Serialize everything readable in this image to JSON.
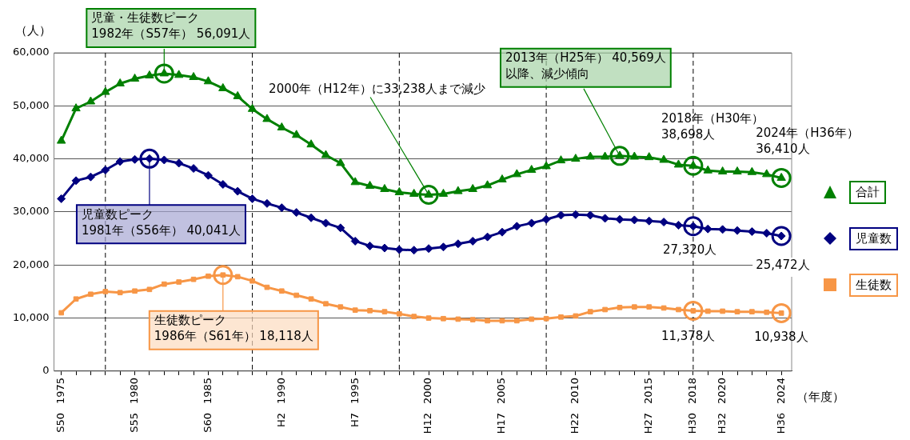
{
  "chart_data": {
    "type": "line",
    "x": [
      1975,
      1976,
      1977,
      1978,
      1979,
      1980,
      1981,
      1982,
      1983,
      1984,
      1985,
      1986,
      1987,
      1988,
      1989,
      1990,
      1991,
      1992,
      1993,
      1994,
      1995,
      1996,
      1997,
      1998,
      1999,
      2000,
      2001,
      2002,
      2003,
      2004,
      2005,
      2006,
      2007,
      2008,
      2009,
      2010,
      2011,
      2012,
      2013,
      2014,
      2015,
      2016,
      2017,
      2018,
      2019,
      2020,
      2021,
      2022,
      2023,
      2024
    ],
    "series": [
      {
        "name": "合計",
        "color": "#008000",
        "marker": "triangle",
        "values": [
          43400,
          49500,
          50800,
          52600,
          54200,
          55100,
          55700,
          56091,
          55800,
          55400,
          54600,
          53300,
          51800,
          49400,
          47500,
          45900,
          44500,
          42700,
          40700,
          39200,
          35600,
          34900,
          34300,
          33700,
          33400,
          33238,
          33400,
          33900,
          34300,
          35000,
          36100,
          37100,
          37900,
          38600,
          39700,
          40000,
          40400,
          40400,
          40569,
          40400,
          40300,
          39800,
          38900,
          38698,
          37800,
          37600,
          37600,
          37500,
          37100,
          36410
        ]
      },
      {
        "name": "児童数",
        "color": "#000080",
        "marker": "diamond",
        "values": [
          32500,
          35900,
          36600,
          37900,
          39500,
          39900,
          40041,
          39800,
          39200,
          38200,
          36900,
          35200,
          33900,
          32500,
          31600,
          30800,
          29900,
          28900,
          27900,
          27000,
          24500,
          23600,
          23200,
          22900,
          22800,
          23100,
          23400,
          24000,
          24500,
          25300,
          26200,
          27300,
          27900,
          28600,
          29400,
          29500,
          29400,
          28800,
          28600,
          28500,
          28300,
          28100,
          27500,
          27320,
          26800,
          26700,
          26500,
          26300,
          26000,
          25472
        ]
      },
      {
        "name": "生徒数",
        "color": "#f79646",
        "marker": "square",
        "values": [
          11000,
          13600,
          14500,
          15000,
          14800,
          15100,
          15400,
          16400,
          16800,
          17300,
          17900,
          18118,
          17800,
          17000,
          15800,
          15100,
          14300,
          13600,
          12700,
          12100,
          11500,
          11400,
          11200,
          10800,
          10300,
          10000,
          9900,
          9800,
          9700,
          9500,
          9500,
          9500,
          9800,
          9900,
          10200,
          10400,
          11200,
          11600,
          12000,
          12100,
          12100,
          11900,
          11600,
          11378,
          11300,
          11300,
          11200,
          11200,
          11100,
          10938
        ]
      }
    ],
    "xlim": [
      1974.5,
      2024.7
    ],
    "xticks": [
      {
        "value": 1975,
        "label": "1975"
      },
      {
        "value": 1976,
        "label": null
      },
      {
        "value": 1977,
        "label": null
      },
      {
        "value": 1978,
        "label": null
      },
      {
        "value": 1979,
        "label": null
      },
      {
        "value": 1980,
        "label": "1980"
      },
      {
        "value": 1981,
        "label": null
      },
      {
        "value": 1982,
        "label": null
      },
      {
        "value": 1983,
        "label": null
      },
      {
        "value": 1984,
        "label": null
      },
      {
        "value": 1985,
        "label": "1985"
      },
      {
        "value": 1986,
        "label": null
      },
      {
        "value": 1987,
        "label": null
      },
      {
        "value": 1988,
        "label": null
      },
      {
        "value": 1989,
        "label": null
      },
      {
        "value": 1990,
        "label": "1990"
      },
      {
        "value": 1991,
        "label": null
      },
      {
        "value": 1992,
        "label": null
      },
      {
        "value": 1993,
        "label": null
      },
      {
        "value": 1994,
        "label": null
      },
      {
        "value": 1995,
        "label": "1995"
      },
      {
        "value": 1996,
        "label": null
      },
      {
        "value": 1997,
        "label": null
      },
      {
        "value": 1998,
        "label": null
      },
      {
        "value": 1999,
        "label": null
      },
      {
        "value": 2000,
        "label": "2000"
      },
      {
        "value": 2001,
        "label": null
      },
      {
        "value": 2002,
        "label": null
      },
      {
        "value": 2003,
        "label": null
      },
      {
        "value": 2004,
        "label": null
      },
      {
        "value": 2005,
        "label": "2005"
      },
      {
        "value": 2006,
        "label": null
      },
      {
        "value": 2007,
        "label": null
      },
      {
        "value": 2008,
        "label": null
      },
      {
        "value": 2009,
        "label": null
      },
      {
        "value": 2010,
        "label": "2010"
      },
      {
        "value": 2011,
        "label": null
      },
      {
        "value": 2012,
        "label": null
      },
      {
        "value": 2013,
        "label": null
      },
      {
        "value": 2014,
        "label": null
      },
      {
        "value": 2015,
        "label": "2015"
      },
      {
        "value": 2016,
        "label": null
      },
      {
        "value": 2017,
        "label": null
      },
      {
        "value": 2018,
        "label": "2018"
      },
      {
        "value": 2019,
        "label": null
      },
      {
        "value": 2020,
        "label": "2020"
      },
      {
        "value": 2021,
        "label": null
      },
      {
        "value": 2022,
        "label": null
      },
      {
        "value": 2023,
        "label": null
      },
      {
        "value": 2024,
        "label": "2024"
      }
    ],
    "xlabel": "（年度）",
    "ylabel": "（人）",
    "ylim": [
      0,
      60000
    ],
    "yticks": [
      0,
      {
        "value": 10000,
        "label": "10,000"
      },
      {
        "value": 20000,
        "label": "20,000"
      },
      {
        "value": 30000,
        "label": "30,000"
      },
      {
        "value": 40000,
        "label": "40,000"
      },
      {
        "value": 50000,
        "label": "50,000"
      },
      {
        "value": 60000,
        "label": "60,000"
      }
    ],
    "grid": "y",
    "legend": "right",
    "ref_lines": [
      {
        "axis": "x",
        "value": 1978,
        "color": "#000000",
        "line_style": "dashed"
      },
      {
        "axis": "x",
        "value": 1988,
        "color": "#000000",
        "line_style": "dashed"
      },
      {
        "axis": "x",
        "value": 1998,
        "color": "#000000",
        "line_style": "dashed"
      },
      {
        "axis": "x",
        "value": 2008,
        "color": "#000000",
        "line_style": "dashed"
      },
      {
        "axis": "x",
        "value": 2018,
        "color": "#000000",
        "line_style": "dashed"
      }
    ],
    "annotations": [
      {
        "text": "児童・生徒数ピーク\n1982年（S57年） 56,091人",
        "x": 1982,
        "y": 56091
      },
      {
        "text": "2000年（H12年）に33,238人まで減少",
        "x": 2000,
        "y": 33238
      },
      {
        "text": "2013年（H25年） 40,569人以降、減少傾向",
        "x": 2013,
        "y": 40569
      },
      {
        "text": "2018年（H30年）\n38,698人",
        "x": 2018,
        "y": 38698
      },
      {
        "text": "2024年（H36年）\n36,410人",
        "x": 2024,
        "y": 36410
      },
      {
        "text": "児童数ピーク\n1981年（S56年） 40,041人",
        "x": 1981,
        "y": 40041
      },
      {
        "text": "27,320人",
        "x": 2018,
        "y": 27320
      },
      {
        "text": "25,472人",
        "x": 2024,
        "y": 25472
      },
      {
        "text": "生徒数ピーク\n1986年（S61年） 18,118人",
        "x": 1986,
        "y": 18118
      },
      {
        "text": "11,378人",
        "x": 2018,
        "y": 11378
      },
      {
        "text": "10,938人",
        "x": 2024,
        "y": 10938
      },
      "S50",
      "S55",
      "S60",
      "H2",
      "H7",
      "H12",
      "H17",
      "H22",
      "H27",
      "H30",
      "H32",
      "H36"
    ]
  }
}
